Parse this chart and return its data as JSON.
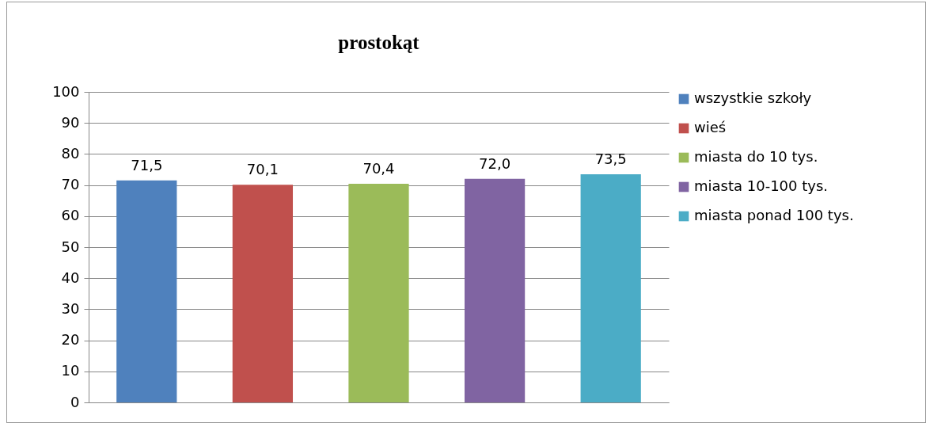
{
  "chart_data": {
    "type": "bar",
    "title": "prostokąt",
    "categories": [
      null,
      null,
      null,
      null,
      null
    ],
    "series": [
      {
        "name": "wszystkie szkoły",
        "color": "#4f81bd",
        "values": [
          71.5,
          null,
          null,
          null,
          null
        ],
        "value_labels": [
          "71,5",
          null,
          null,
          null,
          null
        ]
      },
      {
        "name": "wieś",
        "color": "#c0504d",
        "values": [
          null,
          70.1,
          null,
          null,
          null
        ],
        "value_labels": [
          null,
          "70,1",
          null,
          null,
          null
        ]
      },
      {
        "name": "miasta do 10 tys.",
        "color": "#9bbb59",
        "values": [
          null,
          null,
          70.4,
          null,
          null
        ],
        "value_labels": [
          null,
          null,
          "70,4",
          null,
          null
        ]
      },
      {
        "name": "miasta 10-100 tys.",
        "color": "#8064a2",
        "values": [
          null,
          null,
          null,
          72.0,
          null
        ],
        "value_labels": [
          null,
          null,
          null,
          "72,0",
          null
        ]
      },
      {
        "name": "miasta ponad 100 tys.",
        "color": "#4bacc6",
        "values": [
          null,
          null,
          null,
          null,
          73.5
        ],
        "value_labels": [
          null,
          null,
          null,
          null,
          "73,5"
        ]
      }
    ],
    "ylim": [
      0,
      100
    ],
    "yticks": [
      0,
      10,
      20,
      30,
      40,
      50,
      60,
      70,
      80,
      90,
      100
    ],
    "grid": "y",
    "legend": "right"
  }
}
